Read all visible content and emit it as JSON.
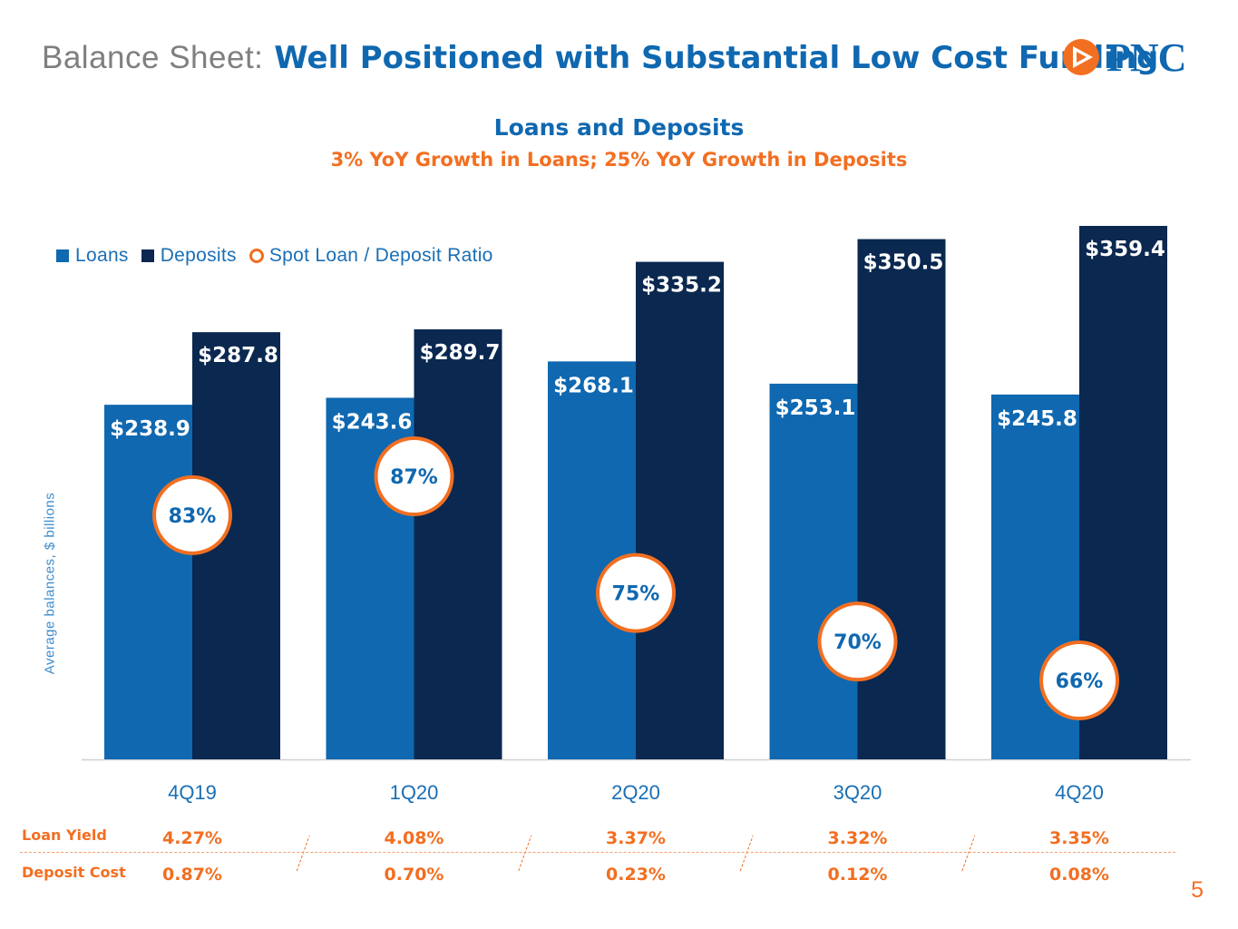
{
  "slide": {
    "title_prefix": "Balance Sheet:",
    "title_main": "Well Positioned with Substantial Low Cost Funding",
    "logo_text": "PNC",
    "page_number": "5"
  },
  "colors": {
    "loans": "#0f68b0",
    "deposits": "#0a2850",
    "ratio_ring": "#f26f21",
    "accent": "#f26f21",
    "brand_blue": "#0f68b0"
  },
  "chart_data": {
    "type": "bar",
    "title": "Loans and Deposits",
    "subtitle": "3% YoY Growth in Loans; 25% YoY Growth in Deposits",
    "ylabel": "Average balances, $ billions",
    "xlabel": "",
    "ylim": [
      0,
      359.4
    ],
    "legend": [
      "Loans",
      "Deposits",
      "Spot Loan / Deposit Ratio"
    ],
    "legend_position": "top-left",
    "categories": [
      "4Q19",
      "1Q20",
      "2Q20",
      "3Q20",
      "4Q20"
    ],
    "series": [
      {
        "name": "Loans",
        "values": [
          238.9,
          243.6,
          268.1,
          253.1,
          245.8
        ],
        "labels": [
          "$238.9",
          "$243.6",
          "$268.1",
          "$253.1",
          "$245.8"
        ]
      },
      {
        "name": "Deposits",
        "values": [
          287.8,
          289.7,
          335.2,
          350.5,
          359.4
        ],
        "labels": [
          "$287.8",
          "$289.7",
          "$335.2",
          "$350.5",
          "$359.4"
        ]
      }
    ],
    "ratio": {
      "name": "Spot Loan / Deposit Ratio",
      "values": [
        83,
        87,
        75,
        70,
        66
      ],
      "labels": [
        "83%",
        "87%",
        "75%",
        "70%",
        "66%"
      ]
    },
    "table": {
      "rows": [
        {
          "label": "Loan Yield",
          "values": [
            "4.27%",
            "4.08%",
            "3.37%",
            "3.32%",
            "3.35%"
          ]
        },
        {
          "label": "Deposit Cost",
          "values": [
            "0.87%",
            "0.70%",
            "0.23%",
            "0.12%",
            "0.08%"
          ]
        }
      ]
    }
  }
}
